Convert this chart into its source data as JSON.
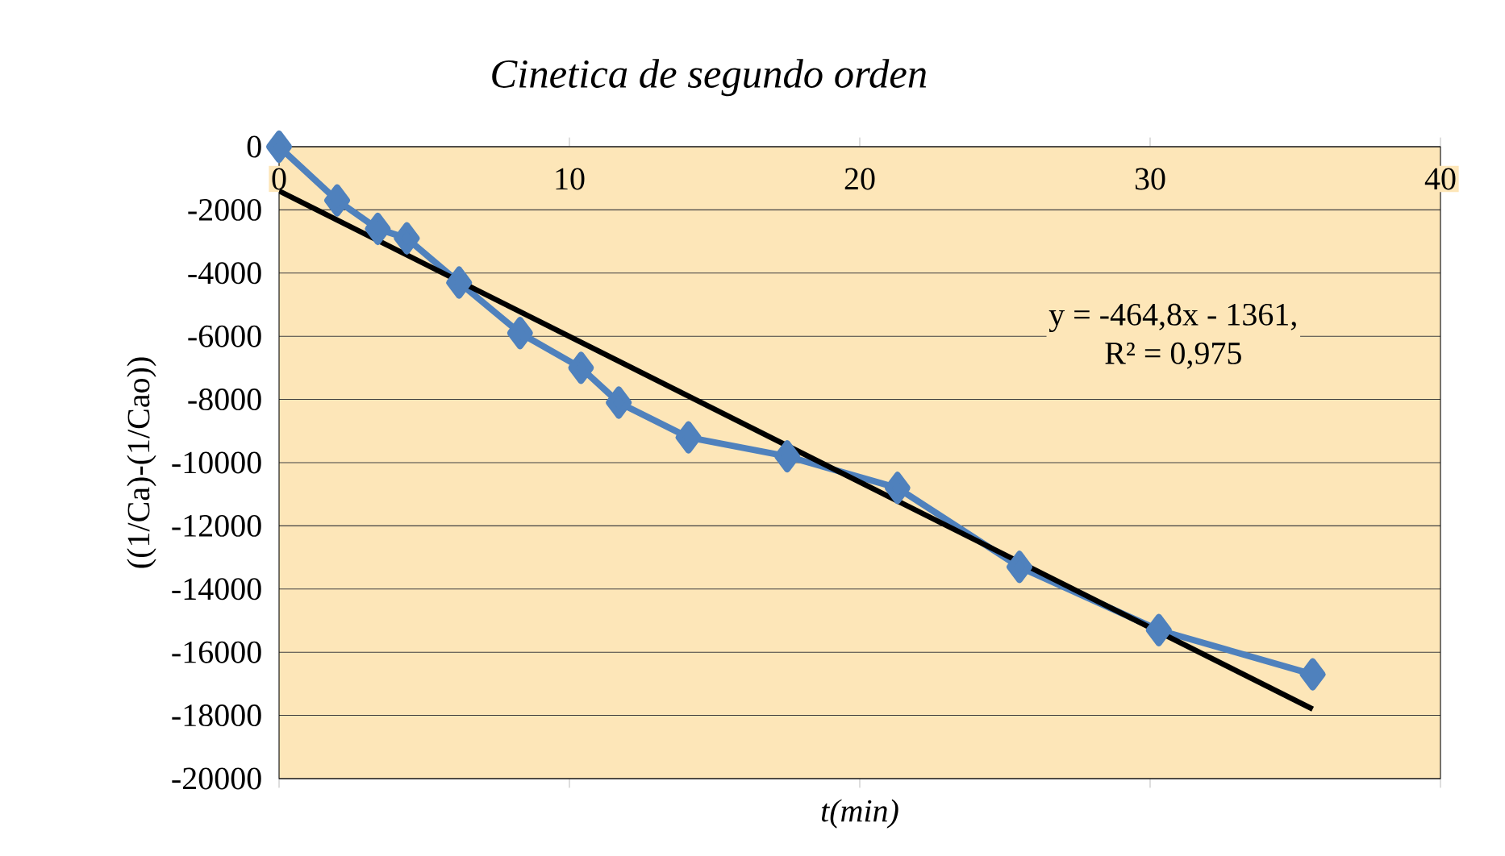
{
  "chart_data": {
    "type": "line",
    "title": "Cinetica de segundo orden",
    "xlabel": "t(min)",
    "ylabel": "((1/Ca)-(1/Cao))",
    "xlim": [
      0,
      40
    ],
    "xticks": [
      0,
      10,
      20,
      30,
      40
    ],
    "ylim": [
      -20000,
      0
    ],
    "yticks": [
      -20000,
      -18000,
      -16000,
      -14000,
      -12000,
      -10000,
      -8000,
      -6000,
      -4000,
      -2000,
      0
    ],
    "grid": "y",
    "series": [
      {
        "marker": "diamond",
        "color": "#4f81bd",
        "x": [
          0,
          2,
          3.4,
          4.4,
          6.2,
          8.3,
          10.4,
          11.7,
          14.1,
          17.5,
          21.3,
          25.5,
          30.3,
          35.6
        ],
        "values": [
          0,
          -1700,
          -2600,
          -2900,
          -4300,
          -5900,
          -7000,
          -8100,
          -9200,
          -9800,
          -10800,
          -13300,
          -15300,
          -16700
        ]
      },
      {
        "marker": "none",
        "color": "#000000",
        "x": [
          0,
          35.6
        ],
        "values": [
          -1400,
          -17800
        ]
      }
    ],
    "annotations": [
      "y = -464,8x - 1361,",
      "R² = 0,975"
    ]
  }
}
